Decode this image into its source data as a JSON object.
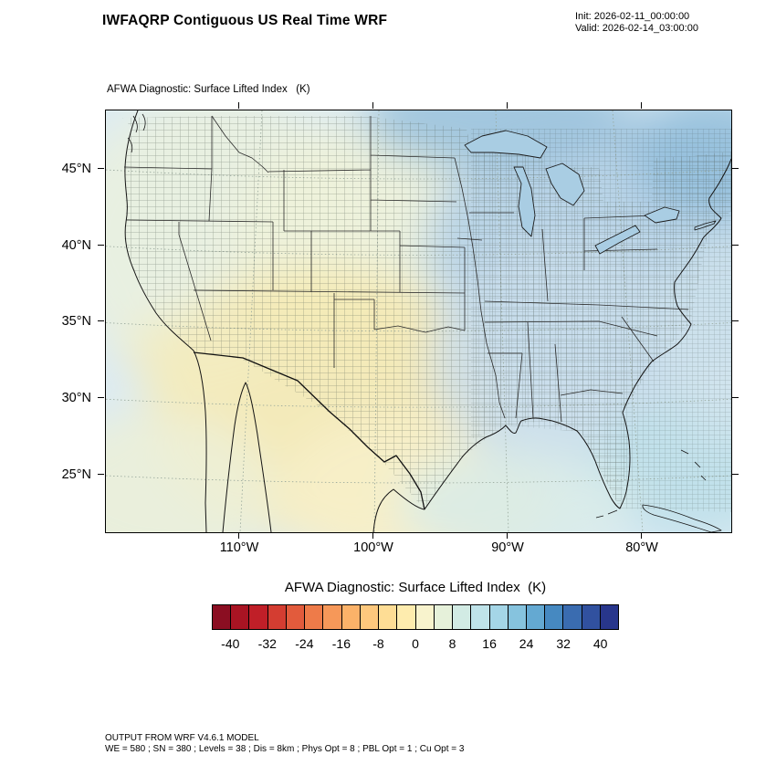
{
  "header": {
    "title": "IWFAQRP Contiguous US Real Time WRF",
    "init_label": "Init: 2026-02-11_00:00:00",
    "valid_label": "Valid: 2026-02-14_03:00:00"
  },
  "map": {
    "field_label": "AFWA Diagnostic: Surface Lifted Index   (K)",
    "lat_ticks": [
      "45°N",
      "40°N",
      "35°N",
      "30°N",
      "25°N"
    ],
    "lon_ticks": [
      "110°W",
      "100°W",
      "90°W",
      "80°W"
    ]
  },
  "colorbar": {
    "title": "AFWA Diagnostic: Surface Lifted Index  (K)",
    "tick_labels": [
      "-40",
      "-32",
      "-24",
      "-16",
      "-8",
      "0",
      "8",
      "16",
      "24",
      "32",
      "40"
    ],
    "colors": [
      "#8b0e22",
      "#a91423",
      "#c01f28",
      "#d43d31",
      "#e25b3c",
      "#ee7b49",
      "#f69859",
      "#fbb269",
      "#fdc87d",
      "#fedd95",
      "#feecae",
      "#f8f3cd",
      "#e6f1da",
      "#d2ebe4",
      "#bfe3e9",
      "#a5d6e7",
      "#86c3de",
      "#64a9d2",
      "#4689c1",
      "#3a6cb0",
      "#31519f",
      "#28368c"
    ]
  },
  "footer": {
    "line1": "OUTPUT FROM WRF V4.6.1 MODEL",
    "line2": "WE = 580 ; SN = 380 ; Levels = 38 ; Dis = 8km ; Phys Opt = 8 ; PBL Opt = 1 ; Cu Opt = 3"
  }
}
